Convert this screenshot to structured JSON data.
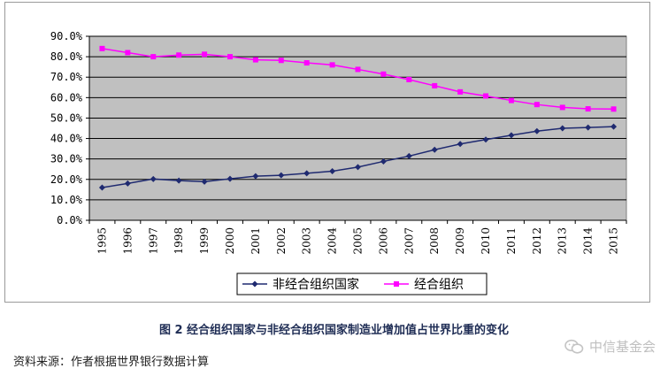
{
  "chart_data": {
    "type": "line",
    "categories": [
      "1995",
      "1996",
      "1997",
      "1998",
      "1999",
      "2000",
      "2001",
      "2002",
      "2003",
      "2004",
      "2005",
      "2006",
      "2007",
      "2008",
      "2009",
      "2010",
      "2011",
      "2012",
      "2013",
      "2014",
      "2015"
    ],
    "series": [
      {
        "name": "非经合组织国家",
        "color": "#1f2a70",
        "marker": "diamond",
        "values": [
          16.0,
          18.0,
          20.2,
          19.4,
          18.9,
          20.3,
          21.6,
          22.0,
          23.0,
          24.0,
          26.0,
          28.8,
          31.4,
          34.5,
          37.3,
          39.5,
          41.6,
          43.6,
          45.0,
          45.4,
          45.8
        ]
      },
      {
        "name": "经合组织",
        "color": "#ff00ff",
        "marker": "square",
        "values": [
          84.0,
          82.0,
          80.0,
          80.8,
          81.2,
          80.0,
          78.5,
          78.2,
          77.0,
          76.0,
          73.8,
          71.5,
          68.8,
          65.8,
          62.8,
          60.8,
          58.6,
          56.6,
          55.2,
          54.5,
          54.4
        ]
      }
    ],
    "ylim": [
      0,
      90
    ],
    "yticks": [
      0,
      10,
      20,
      30,
      40,
      50,
      60,
      70,
      80,
      90
    ],
    "ytick_labels": [
      "0.0%",
      "10.0%",
      "20.0%",
      "30.0%",
      "40.0%",
      "50.0%",
      "60.0%",
      "70.0%",
      "80.0%",
      "90.0%"
    ],
    "grid": true,
    "plot_background": "#c0c0c0",
    "legend_position": "bottom"
  },
  "caption": "图 2 经合组织国家与非经合组织国家制造业增加值占世界比重的变化",
  "source": "资料来源：作者根据世界银行数据计算",
  "watermark": {
    "text": "中信基金会",
    "icon": "wechat-icon"
  }
}
